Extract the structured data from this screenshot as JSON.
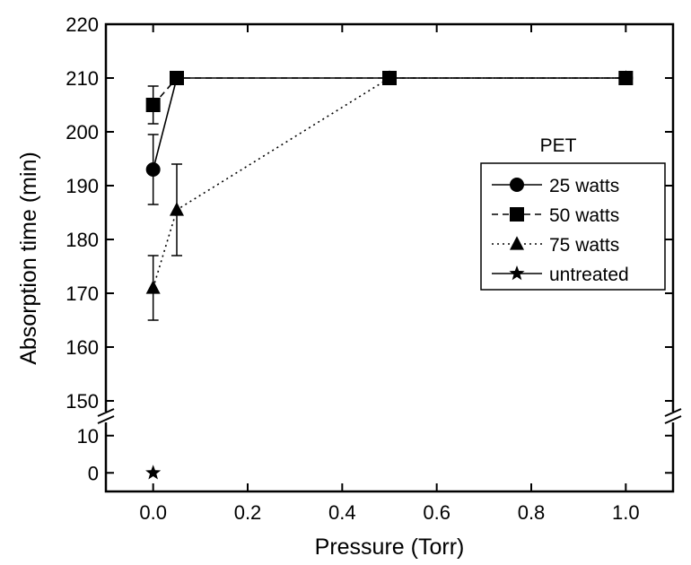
{
  "chart_data": {
    "type": "line",
    "xlabel": "Pressure (Torr)",
    "ylabel": "Absorption time (min)",
    "xlim": [
      -0.1,
      1.1
    ],
    "ylim_lower": [
      -5,
      15
    ],
    "ylim_upper": [
      147,
      220
    ],
    "y_axis_break": true,
    "x_ticks": [
      "0.0",
      "0.2",
      "0.4",
      "0.6",
      "0.8",
      "1.0"
    ],
    "x_tick_values": [
      0.0,
      0.2,
      0.4,
      0.6,
      0.8,
      1.0
    ],
    "y_ticks_upper": [
      "150",
      "160",
      "170",
      "180",
      "190",
      "200",
      "210",
      "220"
    ],
    "y_tick_values_upper": [
      150,
      160,
      170,
      180,
      190,
      200,
      210,
      220
    ],
    "y_ticks_lower": [
      "0",
      "10"
    ],
    "y_tick_values_lower": [
      0,
      10
    ],
    "legend_title": "PET",
    "legend_position": "right",
    "series": [
      {
        "name": "25 watts",
        "marker": "circle",
        "line": "solid",
        "x": [
          0.0,
          0.05,
          0.5,
          1.0
        ],
        "y": [
          193,
          210,
          210,
          210
        ],
        "err": [
          6.5,
          0,
          0,
          0
        ]
      },
      {
        "name": "50 watts",
        "marker": "square",
        "line": "dashed",
        "x": [
          0.0,
          0.05,
          0.5,
          1.0
        ],
        "y": [
          205,
          210,
          210,
          210
        ],
        "err": [
          3.5,
          0,
          0,
          0
        ]
      },
      {
        "name": "75 watts",
        "marker": "triangle",
        "line": "dotted",
        "x": [
          0.0,
          0.05,
          0.5,
          1.0
        ],
        "y": [
          171,
          185.5,
          210,
          210
        ],
        "err": [
          6,
          8.5,
          0,
          0
        ]
      },
      {
        "name": "untreated",
        "marker": "star",
        "line": "solid",
        "x": [
          0.0
        ],
        "y": [
          0
        ],
        "err": [
          0
        ]
      }
    ]
  }
}
